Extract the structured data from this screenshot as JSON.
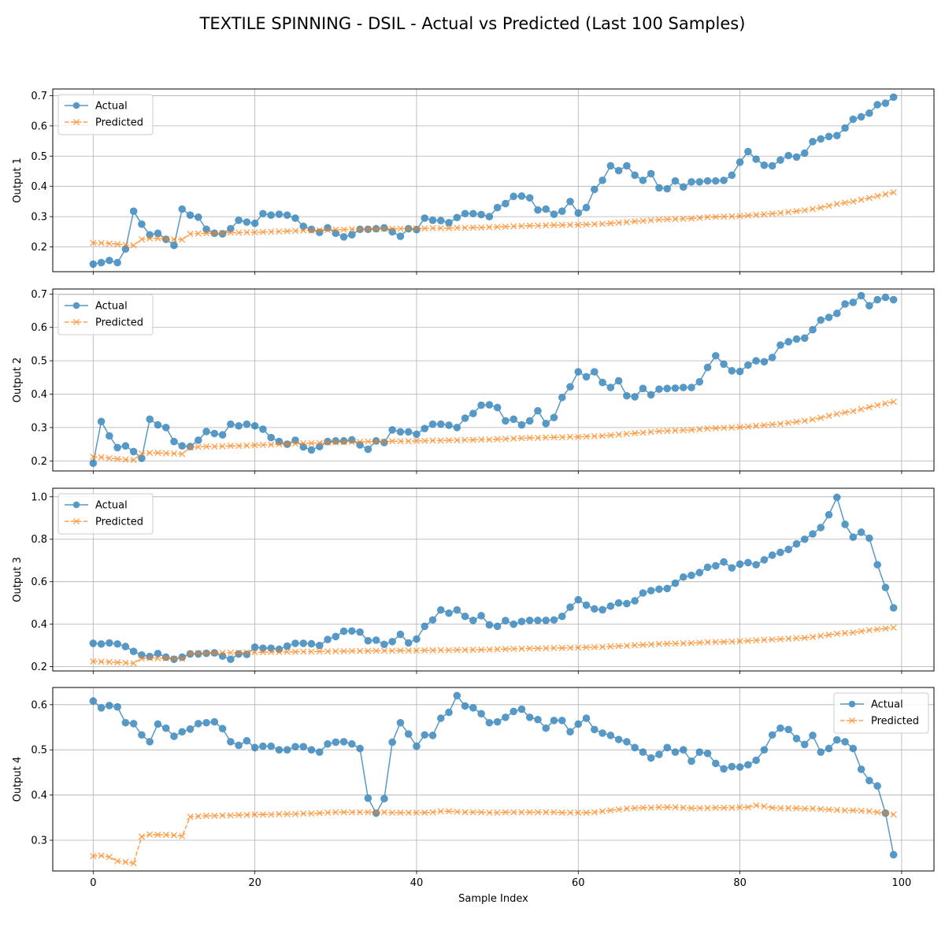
{
  "title": "TEXTILE SPINNING - DSIL - Actual vs Predicted (Last 100 Samples)",
  "colors": {
    "actual": "#1f77b4",
    "predicted": "#ff7f0e",
    "grid": "#b0b0b0"
  },
  "chart_data": [
    {
      "type": "line",
      "ylabel": "Output 1",
      "xlabel": "",
      "xlim": [
        -5,
        104
      ],
      "ylim": [
        0.118,
        0.722
      ],
      "xticks": [
        0,
        20,
        40,
        60,
        80,
        100
      ],
      "yticks": [
        0.2,
        0.3,
        0.4,
        0.5,
        0.6,
        0.7
      ],
      "grid": true,
      "legend_position": "upper left",
      "series": [
        {
          "name": "Actual",
          "marker": "o",
          "linestyle": "solid",
          "values": [
            0.143,
            0.148,
            0.155,
            0.148,
            0.193,
            0.318,
            0.275,
            0.24,
            0.245,
            0.225,
            0.205,
            0.325,
            0.305,
            0.298,
            0.258,
            0.245,
            0.243,
            0.26,
            0.288,
            0.282,
            0.278,
            0.31,
            0.305,
            0.308,
            0.305,
            0.295,
            0.268,
            0.258,
            0.248,
            0.263,
            0.245,
            0.233,
            0.24,
            0.258,
            0.258,
            0.26,
            0.263,
            0.25,
            0.235,
            0.26,
            0.257,
            0.295,
            0.288,
            0.287,
            0.28,
            0.297,
            0.31,
            0.31,
            0.307,
            0.3,
            0.33,
            0.343,
            0.367,
            0.368,
            0.362,
            0.322,
            0.325,
            0.308,
            0.318,
            0.35,
            0.312,
            0.33,
            0.39,
            0.42,
            0.468,
            0.452,
            0.468,
            0.437,
            0.42,
            0.442,
            0.395,
            0.392,
            0.418,
            0.398,
            0.415,
            0.415,
            0.418,
            0.418,
            0.42,
            0.437,
            0.48,
            0.515,
            0.49,
            0.47,
            0.468,
            0.487,
            0.502,
            0.497,
            0.51,
            0.548,
            0.557,
            0.565,
            0.568,
            0.593,
            0.622,
            0.63,
            0.642,
            0.67,
            0.675,
            0.695
          ]
        },
        {
          "name": "Predicted",
          "marker": "x",
          "linestyle": "dashed",
          "values": [
            0.213,
            0.213,
            0.211,
            0.209,
            0.207,
            0.205,
            0.225,
            0.228,
            0.228,
            0.226,
            0.225,
            0.224,
            0.243,
            0.244,
            0.245,
            0.245,
            0.246,
            0.247,
            0.247,
            0.248,
            0.248,
            0.249,
            0.25,
            0.251,
            0.252,
            0.253,
            0.254,
            0.254,
            0.255,
            0.256,
            0.257,
            0.257,
            0.258,
            0.258,
            0.259,
            0.259,
            0.26,
            0.26,
            0.26,
            0.261,
            0.261,
            0.261,
            0.262,
            0.262,
            0.262,
            0.263,
            0.263,
            0.264,
            0.264,
            0.265,
            0.266,
            0.267,
            0.268,
            0.269,
            0.27,
            0.27,
            0.271,
            0.272,
            0.272,
            0.273,
            0.273,
            0.274,
            0.275,
            0.276,
            0.278,
            0.28,
            0.282,
            0.284,
            0.286,
            0.288,
            0.29,
            0.291,
            0.292,
            0.293,
            0.294,
            0.296,
            0.298,
            0.299,
            0.3,
            0.301,
            0.302,
            0.304,
            0.306,
            0.308,
            0.31,
            0.312,
            0.315,
            0.318,
            0.321,
            0.325,
            0.33,
            0.336,
            0.342,
            0.346,
            0.35,
            0.356,
            0.362,
            0.368,
            0.374,
            0.38
          ]
        }
      ]
    },
    {
      "type": "line",
      "ylabel": "Output 2",
      "xlabel": "",
      "xlim": [
        -5,
        104
      ],
      "ylim": [
        0.17,
        0.715
      ],
      "xticks": [
        0,
        20,
        40,
        60,
        80,
        100
      ],
      "yticks": [
        0.2,
        0.3,
        0.4,
        0.5,
        0.6,
        0.7
      ],
      "grid": true,
      "legend_position": "upper left",
      "series": [
        {
          "name": "Actual",
          "marker": "o",
          "linestyle": "solid",
          "values": [
            0.193,
            0.318,
            0.275,
            0.24,
            0.245,
            0.228,
            0.208,
            0.325,
            0.308,
            0.3,
            0.258,
            0.245,
            0.243,
            0.262,
            0.288,
            0.282,
            0.278,
            0.31,
            0.305,
            0.31,
            0.305,
            0.295,
            0.27,
            0.258,
            0.25,
            0.262,
            0.242,
            0.233,
            0.243,
            0.258,
            0.26,
            0.26,
            0.263,
            0.248,
            0.235,
            0.26,
            0.255,
            0.293,
            0.287,
            0.287,
            0.28,
            0.297,
            0.31,
            0.31,
            0.307,
            0.3,
            0.328,
            0.342,
            0.367,
            0.368,
            0.36,
            0.32,
            0.325,
            0.308,
            0.32,
            0.35,
            0.312,
            0.33,
            0.39,
            0.422,
            0.467,
            0.452,
            0.467,
            0.435,
            0.42,
            0.44,
            0.395,
            0.392,
            0.417,
            0.398,
            0.415,
            0.417,
            0.418,
            0.42,
            0.42,
            0.437,
            0.48,
            0.515,
            0.49,
            0.47,
            0.468,
            0.487,
            0.5,
            0.497,
            0.51,
            0.547,
            0.557,
            0.565,
            0.568,
            0.593,
            0.622,
            0.63,
            0.642,
            0.67,
            0.675,
            0.695,
            0.665,
            0.683,
            0.69,
            0.683
          ]
        },
        {
          "name": "Predicted",
          "marker": "x",
          "linestyle": "dashed",
          "values": [
            0.212,
            0.211,
            0.208,
            0.206,
            0.204,
            0.203,
            0.222,
            0.224,
            0.224,
            0.223,
            0.222,
            0.221,
            0.24,
            0.242,
            0.243,
            0.243,
            0.244,
            0.245,
            0.245,
            0.246,
            0.247,
            0.248,
            0.249,
            0.25,
            0.251,
            0.252,
            0.253,
            0.253,
            0.254,
            0.255,
            0.256,
            0.256,
            0.257,
            0.257,
            0.258,
            0.258,
            0.258,
            0.259,
            0.259,
            0.259,
            0.26,
            0.26,
            0.261,
            0.261,
            0.262,
            0.262,
            0.263,
            0.263,
            0.264,
            0.264,
            0.265,
            0.266,
            0.267,
            0.268,
            0.269,
            0.269,
            0.27,
            0.271,
            0.271,
            0.272,
            0.272,
            0.273,
            0.274,
            0.275,
            0.277,
            0.279,
            0.281,
            0.283,
            0.285,
            0.287,
            0.289,
            0.29,
            0.291,
            0.292,
            0.293,
            0.295,
            0.297,
            0.298,
            0.299,
            0.3,
            0.301,
            0.303,
            0.305,
            0.307,
            0.309,
            0.311,
            0.314,
            0.317,
            0.32,
            0.324,
            0.329,
            0.335,
            0.341,
            0.345,
            0.349,
            0.355,
            0.361,
            0.367,
            0.372,
            0.377
          ]
        }
      ]
    },
    {
      "type": "line",
      "ylabel": "Output 3",
      "xlabel": "",
      "xlim": [
        -5,
        104
      ],
      "ylim": [
        0.18,
        1.04
      ],
      "xticks": [
        0,
        20,
        40,
        60,
        80,
        100
      ],
      "yticks": [
        0.2,
        0.4,
        0.6,
        0.8,
        1.0
      ],
      "grid": true,
      "legend_position": "upper left",
      "series": [
        {
          "name": "Actual",
          "marker": "o",
          "linestyle": "solid",
          "values": [
            0.31,
            0.307,
            0.312,
            0.307,
            0.295,
            0.272,
            0.255,
            0.248,
            0.262,
            0.245,
            0.235,
            0.245,
            0.26,
            0.26,
            0.263,
            0.265,
            0.25,
            0.235,
            0.26,
            0.258,
            0.292,
            0.287,
            0.287,
            0.282,
            0.297,
            0.31,
            0.31,
            0.308,
            0.3,
            0.328,
            0.342,
            0.367,
            0.368,
            0.363,
            0.322,
            0.325,
            0.305,
            0.318,
            0.352,
            0.312,
            0.33,
            0.39,
            0.42,
            0.467,
            0.452,
            0.467,
            0.437,
            0.418,
            0.44,
            0.397,
            0.39,
            0.417,
            0.4,
            0.413,
            0.418,
            0.418,
            0.418,
            0.42,
            0.437,
            0.48,
            0.515,
            0.49,
            0.472,
            0.468,
            0.485,
            0.5,
            0.497,
            0.51,
            0.547,
            0.558,
            0.565,
            0.568,
            0.593,
            0.622,
            0.63,
            0.643,
            0.668,
            0.675,
            0.693,
            0.665,
            0.683,
            0.69,
            0.68,
            0.703,
            0.725,
            0.738,
            0.752,
            0.778,
            0.8,
            0.825,
            0.855,
            0.915,
            0.997,
            0.87,
            0.81,
            0.833,
            0.805,
            0.68,
            0.573,
            0.477
          ]
        },
        {
          "name": "Predicted",
          "marker": "x",
          "linestyle": "dashed",
          "values": [
            0.225,
            0.224,
            0.222,
            0.22,
            0.218,
            0.216,
            0.238,
            0.24,
            0.24,
            0.239,
            0.238,
            0.237,
            0.262,
            0.263,
            0.264,
            0.264,
            0.265,
            0.266,
            0.266,
            0.267,
            0.268,
            0.268,
            0.269,
            0.269,
            0.27,
            0.27,
            0.271,
            0.271,
            0.272,
            0.272,
            0.273,
            0.273,
            0.274,
            0.274,
            0.274,
            0.275,
            0.275,
            0.275,
            0.276,
            0.276,
            0.276,
            0.277,
            0.277,
            0.278,
            0.278,
            0.279,
            0.279,
            0.28,
            0.28,
            0.281,
            0.282,
            0.283,
            0.284,
            0.285,
            0.286,
            0.286,
            0.287,
            0.288,
            0.288,
            0.289,
            0.29,
            0.291,
            0.292,
            0.293,
            0.295,
            0.297,
            0.299,
            0.301,
            0.303,
            0.305,
            0.307,
            0.308,
            0.309,
            0.31,
            0.311,
            0.313,
            0.315,
            0.316,
            0.317,
            0.318,
            0.32,
            0.322,
            0.324,
            0.326,
            0.328,
            0.33,
            0.332,
            0.334,
            0.336,
            0.34,
            0.345,
            0.35,
            0.355,
            0.358,
            0.361,
            0.367,
            0.372,
            0.376,
            0.38,
            0.384
          ]
        }
      ]
    },
    {
      "type": "line",
      "ylabel": "Output 4",
      "xlabel": "Sample Index",
      "xlim": [
        -5,
        104
      ],
      "ylim": [
        0.232,
        0.638
      ],
      "xticks": [
        0,
        20,
        40,
        60,
        80,
        100
      ],
      "yticks": [
        0.3,
        0.4,
        0.5,
        0.6
      ],
      "grid": true,
      "legend_position": "upper right",
      "series": [
        {
          "name": "Actual",
          "marker": "o",
          "linestyle": "solid",
          "values": [
            0.608,
            0.593,
            0.598,
            0.595,
            0.56,
            0.558,
            0.533,
            0.518,
            0.557,
            0.548,
            0.53,
            0.54,
            0.546,
            0.558,
            0.56,
            0.562,
            0.547,
            0.518,
            0.51,
            0.52,
            0.505,
            0.508,
            0.508,
            0.5,
            0.5,
            0.507,
            0.507,
            0.5,
            0.495,
            0.513,
            0.517,
            0.518,
            0.513,
            0.503,
            0.393,
            0.36,
            0.392,
            0.517,
            0.56,
            0.535,
            0.508,
            0.533,
            0.532,
            0.57,
            0.583,
            0.62,
            0.597,
            0.593,
            0.58,
            0.56,
            0.562,
            0.572,
            0.585,
            0.59,
            0.572,
            0.567,
            0.548,
            0.565,
            0.565,
            0.54,
            0.557,
            0.57,
            0.545,
            0.537,
            0.532,
            0.523,
            0.518,
            0.505,
            0.495,
            0.482,
            0.49,
            0.505,
            0.495,
            0.5,
            0.475,
            0.495,
            0.492,
            0.47,
            0.458,
            0.463,
            0.462,
            0.467,
            0.477,
            0.5,
            0.533,
            0.548,
            0.545,
            0.525,
            0.512,
            0.532,
            0.495,
            0.503,
            0.522,
            0.518,
            0.503,
            0.457,
            0.432,
            0.42,
            0.36,
            0.268
          ]
        },
        {
          "name": "Predicted",
          "marker": "x",
          "linestyle": "dashed",
          "values": [
            0.265,
            0.266,
            0.263,
            0.254,
            0.252,
            0.249,
            0.308,
            0.313,
            0.312,
            0.312,
            0.311,
            0.309,
            0.352,
            0.353,
            0.354,
            0.354,
            0.355,
            0.355,
            0.356,
            0.356,
            0.357,
            0.357,
            0.357,
            0.358,
            0.358,
            0.358,
            0.359,
            0.359,
            0.36,
            0.361,
            0.362,
            0.362,
            0.362,
            0.362,
            0.362,
            0.362,
            0.362,
            0.361,
            0.361,
            0.361,
            0.361,
            0.361,
            0.362,
            0.364,
            0.364,
            0.363,
            0.362,
            0.362,
            0.362,
            0.361,
            0.361,
            0.362,
            0.362,
            0.362,
            0.362,
            0.362,
            0.362,
            0.362,
            0.361,
            0.361,
            0.361,
            0.361,
            0.362,
            0.364,
            0.366,
            0.368,
            0.37,
            0.371,
            0.372,
            0.372,
            0.373,
            0.373,
            0.373,
            0.372,
            0.371,
            0.371,
            0.371,
            0.372,
            0.372,
            0.372,
            0.373,
            0.373,
            0.377,
            0.375,
            0.372,
            0.371,
            0.371,
            0.371,
            0.37,
            0.37,
            0.369,
            0.368,
            0.367,
            0.366,
            0.366,
            0.365,
            0.364,
            0.362,
            0.36,
            0.357
          ]
        }
      ]
    }
  ]
}
